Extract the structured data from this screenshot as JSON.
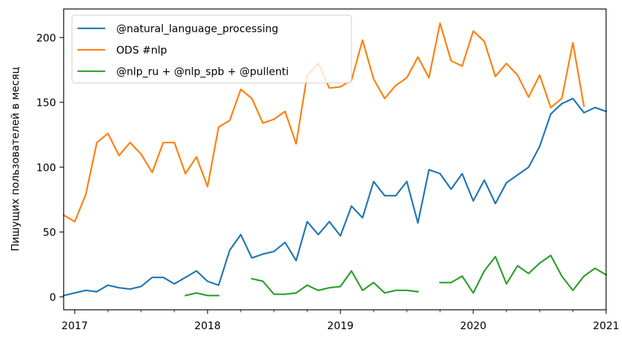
{
  "chart_data": {
    "type": "line",
    "title": "",
    "xlabel": "",
    "ylabel": "Пишущих пользователей в месяц",
    "x_start": "2016-12",
    "x_end": "2021-01",
    "ylim": [
      -10,
      222
    ],
    "x_ticks": [
      {
        "date": "2017-01",
        "label": "2017"
      },
      {
        "date": "2018-01",
        "label": "2018"
      },
      {
        "date": "2019-01",
        "label": "2019"
      },
      {
        "date": "2020-01",
        "label": "2020"
      },
      {
        "date": "2021-01",
        "label": "2021"
      }
    ],
    "y_ticks": [
      0,
      50,
      100,
      150,
      200
    ],
    "grid": false,
    "legend": "top-left",
    "series": [
      {
        "name": "@natural_language_processing",
        "color": "#1f77b4",
        "start": "2016-12",
        "values": [
          1,
          3,
          5,
          4,
          9,
          7,
          6,
          8,
          15,
          15,
          10,
          15,
          20,
          12,
          9,
          36,
          48,
          30,
          33,
          35,
          42,
          28,
          58,
          48,
          58,
          47,
          70,
          61,
          89,
          78,
          78,
          89,
          57,
          98,
          95,
          83,
          95,
          74,
          90,
          72,
          88,
          94,
          100,
          116,
          141,
          149,
          153,
          142,
          146,
          143
        ]
      },
      {
        "name": "ODS #nlp",
        "color": "#ff7f0e",
        "start": "2016-12",
        "values": [
          63,
          58,
          79,
          119,
          126,
          109,
          119,
          110,
          96,
          119,
          119,
          95,
          108,
          85,
          131,
          136,
          160,
          153,
          134,
          137,
          143,
          118,
          171,
          180,
          161,
          162,
          167,
          198,
          168,
          153,
          163,
          169,
          185,
          169,
          211,
          182,
          178,
          205,
          197,
          170,
          180,
          171,
          154,
          171,
          146,
          153,
          196,
          147
        ]
      },
      {
        "name": "@nlp_ru + @nlp_spb + @pullenti",
        "color": "#2ca02c",
        "start": "2016-12",
        "values": [
          null,
          null,
          null,
          null,
          null,
          null,
          null,
          null,
          null,
          null,
          null,
          1,
          3,
          1,
          1,
          null,
          null,
          14,
          12,
          2,
          2,
          3,
          9,
          5,
          7,
          8,
          20,
          5,
          11,
          3,
          5,
          5,
          4,
          null,
          11,
          11,
          16,
          3,
          20,
          31,
          10,
          24,
          18,
          26,
          32,
          16,
          5,
          16,
          22,
          17
        ]
      }
    ]
  }
}
